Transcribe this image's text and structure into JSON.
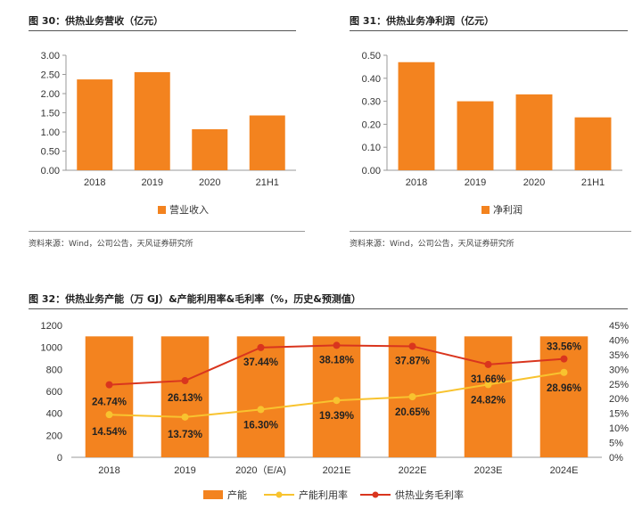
{
  "colors": {
    "bar": "#F3831F",
    "utilization": "#F8C32F",
    "margin": "#D9351E",
    "axis": "#999999",
    "text": "#333333"
  },
  "fig30": {
    "title": "图 30：供热业务营收（亿元）",
    "source": "资料来源：Wind，公司公告，天风证券研究所"
  },
  "fig31": {
    "title": "图 31：供热业务净利润（亿元）",
    "source": "资料来源：Wind，公司公告，天风证券研究所"
  },
  "fig32": {
    "title": "图 32：供热业务产能（万 GJ）&产能利用率&毛利率（%，历史&预测值）"
  },
  "chart_data": [
    {
      "type": "bar",
      "categories": [
        "2018",
        "2019",
        "2020",
        "21H1"
      ],
      "series": [
        {
          "name": "营业收入",
          "values": [
            2.37,
            2.56,
            1.07,
            1.43
          ]
        }
      ],
      "yticks": [
        "0.00",
        "0.50",
        "1.00",
        "1.50",
        "2.00",
        "2.50",
        "3.00"
      ],
      "ylim": [
        0,
        3
      ],
      "legend": "bottom"
    },
    {
      "type": "bar",
      "categories": [
        "2018",
        "2019",
        "2020",
        "21H1"
      ],
      "series": [
        {
          "name": "净利润",
          "values": [
            0.47,
            0.3,
            0.33,
            0.23
          ]
        }
      ],
      "yticks": [
        "0.00",
        "0.10",
        "0.20",
        "0.30",
        "0.40",
        "0.50"
      ],
      "ylim": [
        0,
        0.5
      ],
      "legend": "bottom"
    },
    {
      "type": "bar+line",
      "categories": [
        "2018",
        "2019",
        "2020（E/A)",
        "2021E",
        "2022E",
        "2023E",
        "2024E"
      ],
      "series": [
        {
          "name": "产能",
          "axis": "left",
          "values": [
            1100,
            1100,
            1100,
            1100,
            1100,
            1100,
            1100
          ]
        },
        {
          "name": "产能利用率",
          "axis": "right",
          "values": [
            14.54,
            13.73,
            16.3,
            19.39,
            20.65,
            24.82,
            28.96
          ],
          "labels": [
            "14.54%",
            "13.73%",
            "16.30%",
            "19.39%",
            "20.65%",
            "24.82%",
            "28.96%"
          ]
        },
        {
          "name": "供热业务毛利率",
          "axis": "right",
          "values": [
            24.74,
            26.13,
            37.44,
            38.18,
            37.87,
            31.66,
            33.56
          ],
          "labels": [
            "24.74%",
            "26.13%",
            "37.44%",
            "38.18%",
            "37.87%",
            "31.66%",
            "33.56%"
          ]
        }
      ],
      "yticks_left": [
        "0",
        "200",
        "400",
        "600",
        "800",
        "1000",
        "1200"
      ],
      "ylim_left": [
        0,
        1200
      ],
      "yticks_right": [
        "0%",
        "5%",
        "10%",
        "15%",
        "20%",
        "25%",
        "30%",
        "35%",
        "40%",
        "45%"
      ],
      "ylim_right": [
        0,
        45
      ],
      "legend": "bottom"
    }
  ]
}
